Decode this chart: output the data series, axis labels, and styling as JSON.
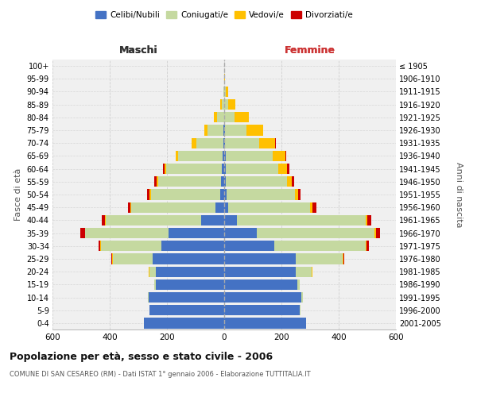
{
  "age_groups": [
    "0-4",
    "5-9",
    "10-14",
    "15-19",
    "20-24",
    "25-29",
    "30-34",
    "35-39",
    "40-44",
    "45-49",
    "50-54",
    "55-59",
    "60-64",
    "65-69",
    "70-74",
    "75-79",
    "80-84",
    "85-89",
    "90-94",
    "95-99",
    "100+"
  ],
  "birth_years": [
    "2001-2005",
    "1996-2000",
    "1991-1995",
    "1986-1990",
    "1981-1985",
    "1976-1980",
    "1971-1975",
    "1966-1970",
    "1961-1965",
    "1956-1960",
    "1951-1955",
    "1946-1950",
    "1941-1945",
    "1936-1940",
    "1931-1935",
    "1926-1930",
    "1921-1925",
    "1916-1920",
    "1911-1915",
    "1906-1910",
    "≤ 1905"
  ],
  "colors": {
    "celibe": "#4472C4",
    "coniugato": "#c5d9a0",
    "vedovo": "#ffc000",
    "divorziato": "#cc0000"
  },
  "males": {
    "celibe": [
      280,
      260,
      265,
      240,
      240,
      250,
      220,
      195,
      80,
      30,
      15,
      10,
      8,
      5,
      3,
      2,
      0,
      0,
      0,
      0,
      0
    ],
    "coniugato": [
      0,
      2,
      2,
      5,
      20,
      140,
      210,
      290,
      335,
      295,
      240,
      220,
      195,
      155,
      95,
      55,
      25,
      8,
      3,
      1,
      0
    ],
    "vedovo": [
      0,
      0,
      0,
      0,
      3,
      3,
      3,
      2,
      2,
      3,
      5,
      5,
      5,
      10,
      15,
      12,
      10,
      5,
      1,
      0,
      0
    ],
    "divorziato": [
      0,
      0,
      0,
      0,
      0,
      2,
      5,
      15,
      10,
      8,
      10,
      10,
      5,
      0,
      0,
      0,
      0,
      0,
      0,
      0,
      0
    ]
  },
  "females": {
    "nubile": [
      285,
      265,
      270,
      255,
      250,
      250,
      175,
      115,
      45,
      15,
      8,
      5,
      5,
      5,
      3,
      2,
      0,
      0,
      0,
      0,
      0
    ],
    "coniugata": [
      0,
      2,
      5,
      10,
      55,
      165,
      320,
      410,
      450,
      285,
      240,
      215,
      185,
      165,
      120,
      75,
      35,
      15,
      5,
      1,
      0
    ],
    "vedova": [
      0,
      0,
      0,
      0,
      2,
      2,
      3,
      5,
      5,
      8,
      10,
      15,
      30,
      45,
      55,
      60,
      50,
      25,
      8,
      2,
      1
    ],
    "divorziata": [
      0,
      0,
      0,
      0,
      0,
      3,
      8,
      15,
      15,
      15,
      10,
      10,
      8,
      2,
      2,
      0,
      0,
      0,
      0,
      0,
      0
    ]
  },
  "xlim": 600,
  "title": "Popolazione per età, sesso e stato civile - 2006",
  "subtitle": "COMUNE DI SAN CESAREO (RM) - Dati ISTAT 1° gennaio 2006 - Elaborazione TUTTITALIA.IT",
  "xlabel_left": "Maschi",
  "xlabel_right": "Femmine",
  "ylabel_left": "Fasce di età",
  "ylabel_right": "Anni di nascita",
  "bg_color": "#f0f0f0",
  "grid_color": "#cccccc"
}
